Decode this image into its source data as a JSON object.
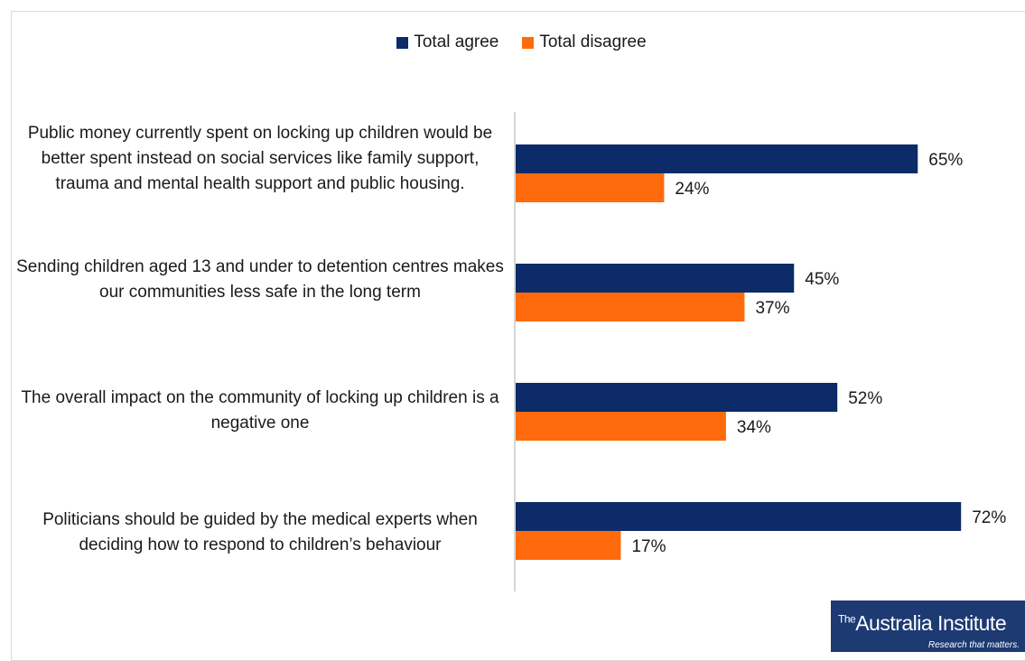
{
  "chart_data": {
    "type": "bar",
    "orientation": "horizontal",
    "categories": [
      "Public money currently spent on locking up children would be better spent instead on social services like family support, trauma and mental health support and public housing.",
      "Sending children aged 13 and under to detention centres makes our communities less safe in the long term",
      "The overall impact on the community of locking up children is a negative one",
      "Politicians should be guided by the medical experts when deciding how to respond to children’s behaviour"
    ],
    "series": [
      {
        "name": "Total agree",
        "values": [
          65,
          45,
          52,
          72
        ],
        "color": "#0d2b68"
      },
      {
        "name": "Total disagree",
        "values": [
          24,
          37,
          34,
          17
        ],
        "color": "#ff6a0d"
      }
    ],
    "value_labels": {
      "agree": [
        "65%",
        "45%",
        "52%",
        "72%"
      ],
      "disagree": [
        "24%",
        "37%",
        "34%",
        "17%"
      ]
    },
    "xlim": [
      0,
      100
    ],
    "legend_position": "top-center",
    "grid": false
  },
  "legend": {
    "agree_label": "Total agree",
    "disagree_label": "Total disagree"
  },
  "logo": {
    "the": "The",
    "name": "Australia Institute",
    "tagline": "Research that matters."
  }
}
